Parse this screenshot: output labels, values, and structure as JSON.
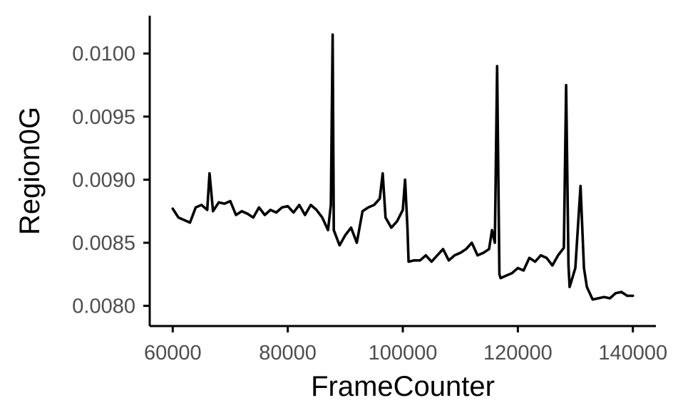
{
  "chart_data": {
    "type": "line",
    "title": "",
    "xlabel": "FrameCounter",
    "ylabel": "Region0G",
    "xlim": [
      56000,
      144000
    ],
    "ylim": [
      0.00784,
      0.0103
    ],
    "x_ticks": [
      60000,
      80000,
      100000,
      120000,
      140000
    ],
    "x_tick_labels": [
      "60000",
      "80000",
      "100000",
      "120000",
      "140000"
    ],
    "y_ticks": [
      0.008,
      0.0085,
      0.009,
      0.0095,
      0.01
    ],
    "y_tick_labels": [
      "0.0080",
      "0.0085",
      "0.0090",
      "0.0095",
      "0.0100"
    ],
    "grid": false,
    "legend": "none",
    "line_color": "#000000",
    "series": [
      {
        "x": [
          60000,
          61000,
          62000,
          63000,
          64000,
          65000,
          66000,
          66400,
          67000,
          68000,
          69000,
          70000,
          71000,
          72000,
          73000,
          74000,
          75000,
          76000,
          77000,
          78000,
          79000,
          80000,
          81000,
          82000,
          83000,
          84000,
          85000,
          86000,
          87000,
          87500,
          87800,
          88000,
          89000,
          90000,
          91000,
          92000,
          93000,
          94000,
          95000,
          96000,
          96500,
          97000,
          98000,
          99000,
          100000,
          100400,
          100800,
          101000,
          102000,
          103000,
          104000,
          105000,
          106000,
          107000,
          108000,
          109000,
          110000,
          111000,
          112000,
          113000,
          114000,
          115000,
          115500,
          116000,
          116400,
          116800,
          117000,
          118000,
          119000,
          120000,
          121000,
          122000,
          123000,
          124000,
          125000,
          126000,
          127000,
          128000,
          128400,
          128800,
          129000,
          130000,
          130900,
          131500,
          132000,
          133000,
          134000,
          135000,
          136000,
          137000,
          138000,
          139000,
          140000
        ],
        "y": [
          0.00877,
          0.0087,
          0.00868,
          0.00866,
          0.00878,
          0.0088,
          0.00876,
          0.00905,
          0.00875,
          0.00882,
          0.00881,
          0.00883,
          0.00872,
          0.00875,
          0.00873,
          0.0087,
          0.00878,
          0.00872,
          0.00876,
          0.00874,
          0.00878,
          0.00879,
          0.00874,
          0.0088,
          0.00872,
          0.0088,
          0.00876,
          0.0087,
          0.0086,
          0.0088,
          0.01015,
          0.0086,
          0.00848,
          0.00856,
          0.00862,
          0.0085,
          0.00875,
          0.00878,
          0.0088,
          0.00885,
          0.00905,
          0.0087,
          0.00862,
          0.00867,
          0.00876,
          0.009,
          0.00862,
          0.00835,
          0.00836,
          0.00836,
          0.0084,
          0.00835,
          0.0084,
          0.00845,
          0.00836,
          0.0084,
          0.00842,
          0.00845,
          0.0085,
          0.0084,
          0.00842,
          0.00845,
          0.0086,
          0.0085,
          0.0099,
          0.00825,
          0.00822,
          0.00824,
          0.00826,
          0.0083,
          0.00828,
          0.00838,
          0.00835,
          0.0084,
          0.00838,
          0.00832,
          0.0084,
          0.00846,
          0.00975,
          0.00832,
          0.00815,
          0.0083,
          0.00895,
          0.0083,
          0.00815,
          0.00805,
          0.00806,
          0.00807,
          0.00806,
          0.0081,
          0.00811,
          0.00808,
          0.00808
        ]
      }
    ]
  }
}
